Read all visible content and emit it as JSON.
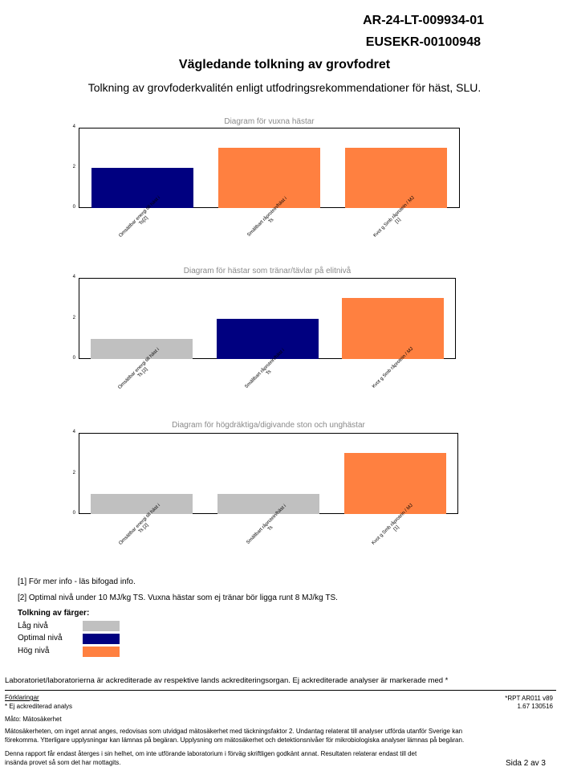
{
  "header": {
    "report_id": "AR-24-LT-009934-01",
    "order_id": "EUSEKR-00100948"
  },
  "title": "Vägledande tolkning av grovfodret",
  "subtitle": "Tolkning av grovfoderkvalitén enligt utfodringsrekommendationer för häst, SLU.",
  "colors": {
    "low": "#c0c0c0",
    "optimal": "#000080",
    "high": "#ff8040"
  },
  "chart_data": [
    {
      "type": "bar",
      "title": "Diagram för vuxna hästar",
      "categories": [
        "Omsättbar energi till häst i Ts[2]",
        "Smältbart råprotein/häst i Ts",
        "Kvot g Smb råprotein / MJ [1]"
      ],
      "values": [
        2,
        3,
        3
      ],
      "levels": [
        "optimal",
        "high",
        "high"
      ],
      "ylim": [
        0,
        4
      ],
      "yticks": [
        0,
        2,
        4
      ],
      "grid": false
    },
    {
      "type": "bar",
      "title": "Diagram för hästar som tränar/tävlar på elitnivå",
      "categories": [
        "Omsättbar energi till häst i Ts [2]",
        "Smältbart råprotein/häst i Ts",
        "Kvot g Smb råprotein / MJ"
      ],
      "values": [
        1,
        2,
        3
      ],
      "levels": [
        "low",
        "optimal",
        "high"
      ],
      "ylim": [
        0,
        4
      ],
      "yticks": [
        0,
        2,
        4
      ],
      "grid": false
    },
    {
      "type": "bar",
      "title": "Diagram för högdräktiga/digivande ston och unghästar",
      "categories": [
        "Omsättbar energi till häst i Ts [2]",
        "Smältbart råprotein/häst i Ts",
        "Kvot g Smb råprotein / MJ [1]"
      ],
      "values": [
        1,
        1,
        3
      ],
      "levels": [
        "low",
        "low",
        "high"
      ],
      "ylim": [
        0,
        4
      ],
      "yticks": [
        0,
        2,
        4
      ],
      "grid": false
    }
  ],
  "notes": {
    "note1": "[1] För mer info - läs bifogad info.",
    "note2": "[2] Optimal nivå under 10 MJ/kg TS. Vuxna hästar som ej tränar bör ligga runt 8 MJ/kg TS."
  },
  "legend": {
    "title": "Tolkning av färger:",
    "items": [
      {
        "label": "Låg nivå",
        "level": "low"
      },
      {
        "label": "Optimal nivå",
        "level": "optimal"
      },
      {
        "label": "Hög nivå",
        "level": "high"
      }
    ]
  },
  "footer": {
    "accreditation": "Laboratoriet/laboratorierna är ackrediterade av respektive lands ackrediteringsorgan. Ej ackrediterade analyser är markerade med *",
    "explanations_heading": "Förklaringar",
    "star_note": "* Ej ackrediterad analys",
    "report_code": "*RPT AR011 v89",
    "version": "1.67 130516",
    "mato": "Måto: Mätosäkerhet",
    "uncertainty_line1": "Mätosäkerheten, om inget annat anges, redovisas som utvidgad mätosäkerhet med täckningsfaktor 2. Undantag relaterat till analyser utförda utanför Sverige kan",
    "uncertainty_line2": "förekomma. Ytterligare upplysningar kan lämnas på begäran. Upplysning om mätosäkerhet och detektionsnivåer för mikrobiologiska analyser lämnas på begäran.",
    "report_line1": "Denna rapport får endast återges i sin helhet, om inte utförande laboratorium i förväg skriftligen godkänt annat. Resultaten relaterar endast till det",
    "report_line2": "insända provet så som det har mottagits.",
    "page": "Sida 2 av 3"
  }
}
